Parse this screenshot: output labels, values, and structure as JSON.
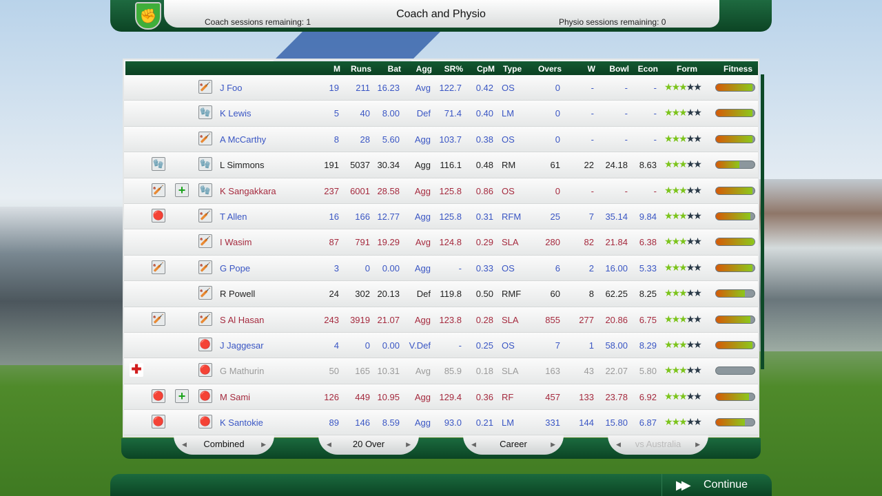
{
  "header": {
    "title": "Coach and Physio",
    "coach_sessions": "Coach sessions remaining: 1",
    "physio_sessions": "Physio sessions remaining: 0"
  },
  "columns": [
    "M",
    "Runs",
    "Bat",
    "Agg",
    "SR%",
    "CpM",
    "Type",
    "Overs",
    "W",
    "Bowl",
    "Econ",
    "Form",
    "Fitness"
  ],
  "colors": {
    "blue": "#3a56c4",
    "red": "#a52a3e",
    "black": "#222222",
    "grey": "#9a9a9a",
    "header": "#0f4d2b"
  },
  "players": [
    {
      "name": "J Foo",
      "color": "blue",
      "cond": "",
      "treat": "",
      "role": "bat-icon",
      "M": "19",
      "Runs": "211",
      "Bat": "16.23",
      "Agg": "Avg",
      "SR": "122.7",
      "CpM": "0.42",
      "Type": "OS",
      "Overs": "0",
      "W": "-",
      "Bowl": "-",
      "Econ": "-",
      "form": 2.5,
      "fitness": 95
    },
    {
      "name": "K Lewis",
      "color": "blue",
      "cond": "",
      "treat": "",
      "role": "keeper-gloves-icon",
      "M": "5",
      "Runs": "40",
      "Bat": "8.00",
      "Agg": "Def",
      "SR": "71.4",
      "CpM": "0.40",
      "Type": "LM",
      "Overs": "0",
      "W": "-",
      "Bowl": "-",
      "Econ": "-",
      "form": 2.5,
      "fitness": 95
    },
    {
      "name": "A McCarthy",
      "color": "blue",
      "cond": "",
      "treat": "",
      "role": "bat-icon",
      "M": "8",
      "Runs": "28",
      "Bat": "5.60",
      "Agg": "Agg",
      "SR": "103.7",
      "CpM": "0.38",
      "Type": "OS",
      "Overs": "0",
      "W": "-",
      "Bowl": "-",
      "Econ": "-",
      "form": 2.5,
      "fitness": 95
    },
    {
      "name": "L Simmons",
      "color": "black",
      "cond": "gloves-ball-icon",
      "treat": "",
      "role": "keeper-gloves-icon",
      "M": "191",
      "Runs": "5037",
      "Bat": "30.34",
      "Agg": "Agg",
      "SR": "116.1",
      "CpM": "0.48",
      "Type": "RM",
      "Overs": "61",
      "W": "22",
      "Bowl": "24.18",
      "Econ": "8.63",
      "form": 2.5,
      "fitness": 60
    },
    {
      "name": "K Sangakkara",
      "color": "red",
      "cond": "bat-icon",
      "treat": "plus",
      "role": "gloves-ball-icon",
      "M": "237",
      "Runs": "6001",
      "Bat": "28.58",
      "Agg": "Agg",
      "SR": "125.8",
      "CpM": "0.86",
      "Type": "OS",
      "Overs": "0",
      "W": "-",
      "Bowl": "-",
      "Econ": "-",
      "form": 2.5,
      "fitness": 95
    },
    {
      "name": "T Allen",
      "color": "blue",
      "cond": "ball-icon",
      "treat": "",
      "role": "bat-ball-icon",
      "M": "16",
      "Runs": "166",
      "Bat": "12.77",
      "Agg": "Agg",
      "SR": "125.8",
      "CpM": "0.31",
      "Type": "RFM",
      "Overs": "25",
      "W": "7",
      "Bowl": "35.14",
      "Econ": "9.84",
      "form": 2.5,
      "fitness": 90
    },
    {
      "name": "I Wasim",
      "color": "red",
      "cond": "",
      "treat": "",
      "role": "bat-ball-icon",
      "M": "87",
      "Runs": "791",
      "Bat": "19.29",
      "Agg": "Avg",
      "SR": "124.8",
      "CpM": "0.29",
      "Type": "SLA",
      "Overs": "280",
      "W": "82",
      "Bowl": "21.84",
      "Econ": "6.38",
      "form": 2.5,
      "fitness": 100
    },
    {
      "name": "G Pope",
      "color": "blue",
      "cond": "bat-icon",
      "treat": "",
      "role": "bat-ball-icon",
      "M": "3",
      "Runs": "0",
      "Bat": "0.00",
      "Agg": "Agg",
      "SR": "-",
      "CpM": "0.33",
      "Type": "OS",
      "Overs": "6",
      "W": "2",
      "Bowl": "16.00",
      "Econ": "5.33",
      "form": 2.5,
      "fitness": 95
    },
    {
      "name": "R Powell",
      "color": "black",
      "cond": "",
      "treat": "",
      "role": "bat-ball-icon",
      "M": "24",
      "Runs": "302",
      "Bat": "20.13",
      "Agg": "Def",
      "SR": "119.8",
      "CpM": "0.50",
      "Type": "RMF",
      "Overs": "60",
      "W": "8",
      "Bowl": "62.25",
      "Econ": "8.25",
      "form": 2.5,
      "fitness": 75
    },
    {
      "name": "S Al Hasan",
      "color": "red",
      "cond": "bat-icon",
      "treat": "",
      "role": "bat-ball-icon",
      "M": "243",
      "Runs": "3919",
      "Bat": "21.07",
      "Agg": "Agg",
      "SR": "123.8",
      "CpM": "0.28",
      "Type": "SLA",
      "Overs": "855",
      "W": "277",
      "Bowl": "20.86",
      "Econ": "6.75",
      "form": 2.5,
      "fitness": 90
    },
    {
      "name": "J Jaggesar",
      "color": "blue",
      "cond": "",
      "treat": "",
      "role": "ball-icon",
      "M": "4",
      "Runs": "0",
      "Bat": "0.00",
      "Agg": "V.Def",
      "SR": "-",
      "CpM": "0.25",
      "Type": "OS",
      "Overs": "7",
      "W": "1",
      "Bowl": "58.00",
      "Econ": "8.29",
      "form": 2.5,
      "fitness": 95
    },
    {
      "name": "G Mathurin",
      "color": "grey",
      "cond": "injury-cross-icon",
      "treat": "",
      "role": "ball-icon",
      "M": "50",
      "Runs": "165",
      "Bat": "10.31",
      "Agg": "Avg",
      "SR": "85.9",
      "CpM": "0.18",
      "Type": "SLA",
      "Overs": "163",
      "W": "43",
      "Bowl": "22.07",
      "Econ": "5.80",
      "form": 2.5,
      "fitness": 0
    },
    {
      "name": "M Sami",
      "color": "red",
      "cond": "ball-icon",
      "treat": "plus",
      "role": "ball-icon",
      "M": "126",
      "Runs": "449",
      "Bat": "10.95",
      "Agg": "Agg",
      "SR": "129.4",
      "CpM": "0.36",
      "Type": "RF",
      "Overs": "457",
      "W": "133",
      "Bowl": "23.78",
      "Econ": "6.92",
      "form": 2.5,
      "fitness": 85
    },
    {
      "name": "K Santokie",
      "color": "blue",
      "cond": "ball-icon",
      "treat": "",
      "role": "ball-icon",
      "M": "89",
      "Runs": "146",
      "Bat": "8.59",
      "Agg": "Agg",
      "SR": "93.0",
      "CpM": "0.21",
      "Type": "LM",
      "Overs": "331",
      "W": "144",
      "Bowl": "15.80",
      "Econ": "6.87",
      "form": 2.5,
      "fitness": 75
    }
  ],
  "tabs": [
    {
      "label": "Combined",
      "enabled": true
    },
    {
      "label": "20 Over",
      "enabled": true
    },
    {
      "label": "Career",
      "enabled": true
    },
    {
      "label": "vs Australia",
      "enabled": false
    }
  ],
  "continue_label": "Continue"
}
